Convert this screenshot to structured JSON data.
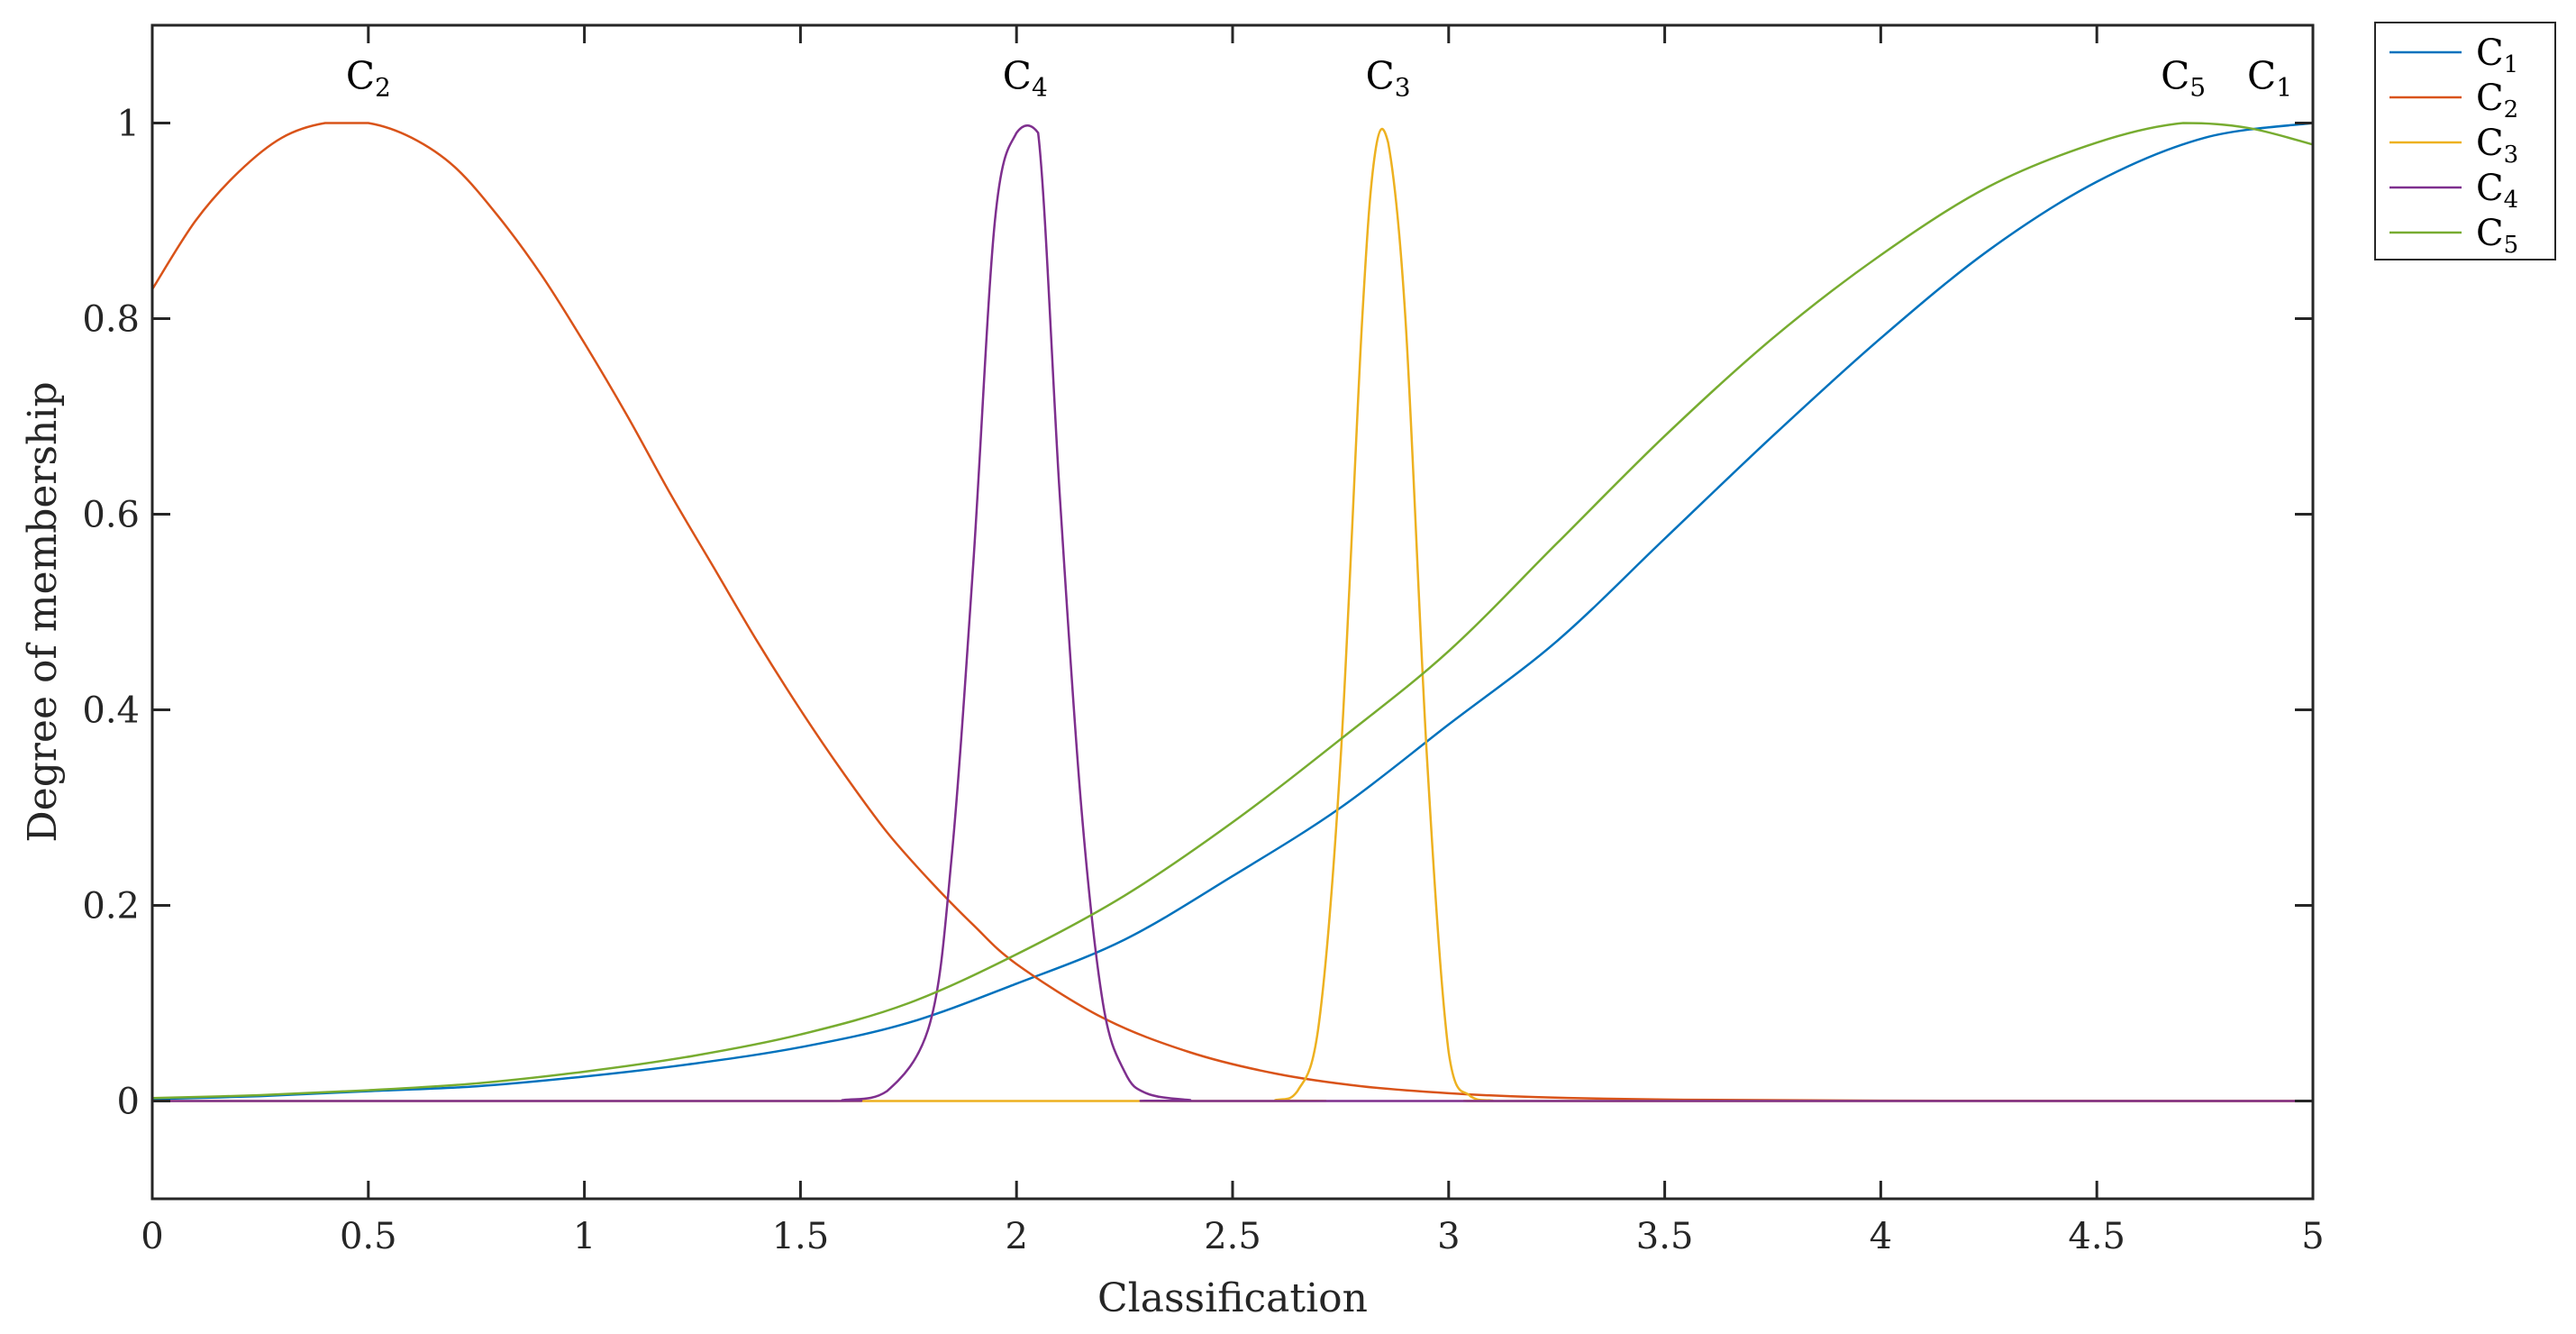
{
  "chart_data": {
    "type": "line",
    "xlabel": "Classification",
    "ylabel": "Degree of membership",
    "xlim": [
      0,
      5
    ],
    "ylim": [
      -0.1,
      1.1
    ],
    "x_ticks": [
      "0",
      "0.5",
      "1",
      "1.5",
      "2",
      "2.5",
      "3",
      "3.5",
      "4",
      "4.5",
      "5"
    ],
    "y_ticks": [
      "0",
      "0.2",
      "0.4",
      "0.6",
      "0.8",
      "1"
    ],
    "grid": false,
    "legend_position": "outside-top-right",
    "series": [
      {
        "name": "C1",
        "color": "#0072BD",
        "x": [
          0,
          0.25,
          0.5,
          0.75,
          1,
          1.25,
          1.5,
          1.75,
          2,
          2.25,
          2.5,
          2.75,
          3,
          3.25,
          3.5,
          3.75,
          4,
          4.25,
          4.5,
          4.75,
          5
        ],
        "values": [
          0.002,
          0.005,
          0.01,
          0.015,
          0.025,
          0.038,
          0.055,
          0.08,
          0.12,
          0.165,
          0.23,
          0.3,
          0.385,
          0.47,
          0.575,
          0.68,
          0.78,
          0.87,
          0.94,
          0.985,
          1.0
        ]
      },
      {
        "name": "C2",
        "color": "#D95319",
        "x": [
          0,
          0.1,
          0.2,
          0.3,
          0.4,
          0.5,
          0.6,
          0.7,
          0.8,
          0.9,
          1,
          1.1,
          1.2,
          1.3,
          1.4,
          1.5,
          1.6,
          1.7,
          1.8,
          1.9,
          2,
          2.2,
          2.4,
          2.6,
          2.8,
          3,
          3.2,
          3.5,
          4,
          5
        ],
        "values": [
          0.83,
          0.9,
          0.95,
          0.985,
          1.0,
          1.0,
          0.985,
          0.955,
          0.905,
          0.845,
          0.775,
          0.7,
          0.62,
          0.545,
          0.47,
          0.4,
          0.335,
          0.275,
          0.225,
          0.18,
          0.14,
          0.085,
          0.05,
          0.028,
          0.015,
          0.008,
          0.004,
          0.0015,
          0.0003,
          0
        ]
      },
      {
        "name": "C3",
        "color": "#EDB120",
        "x": [
          0,
          2.5,
          2.6,
          2.65,
          2.7,
          2.75,
          2.8,
          2.83,
          2.86,
          2.9,
          2.95,
          3.0,
          3.05,
          3.1,
          3.2,
          5
        ],
        "values": [
          0,
          0,
          0.001,
          0.01,
          0.08,
          0.35,
          0.8,
          0.97,
          0.98,
          0.8,
          0.35,
          0.05,
          0.005,
          0.0005,
          0,
          0
        ]
      },
      {
        "name": "C4",
        "color": "#7E2F8E",
        "x": [
          0,
          1.5,
          1.6,
          1.7,
          1.8,
          1.85,
          1.9,
          1.95,
          2.0,
          2.05,
          2.1,
          2.15,
          2.2,
          2.25,
          2.3,
          2.4,
          2.5,
          5
        ],
        "values": [
          0,
          0,
          0.001,
          0.01,
          0.08,
          0.25,
          0.55,
          0.9,
          0.99,
          0.99,
          0.62,
          0.3,
          0.1,
          0.03,
          0.008,
          0.001,
          0,
          0
        ]
      },
      {
        "name": "C5",
        "color": "#77AC30",
        "x": [
          0,
          0.25,
          0.5,
          0.75,
          1,
          1.25,
          1.5,
          1.75,
          2,
          2.25,
          2.5,
          2.75,
          3,
          3.25,
          3.5,
          3.75,
          4,
          4.25,
          4.5,
          4.7,
          4.85,
          5
        ],
        "values": [
          0.003,
          0.006,
          0.011,
          0.018,
          0.03,
          0.046,
          0.068,
          0.1,
          0.15,
          0.21,
          0.285,
          0.37,
          0.46,
          0.57,
          0.68,
          0.78,
          0.865,
          0.935,
          0.98,
          1.0,
          0.995,
          0.978
        ]
      }
    ],
    "annotations": [
      {
        "base": "C",
        "sub": "2",
        "x": 0.5
      },
      {
        "base": "C",
        "sub": "4",
        "x": 2.02
      },
      {
        "base": "C",
        "sub": "3",
        "x": 2.86
      },
      {
        "base": "C",
        "sub": "5",
        "x": 4.7
      },
      {
        "base": "C",
        "sub": "1",
        "x": 4.9
      }
    ]
  }
}
